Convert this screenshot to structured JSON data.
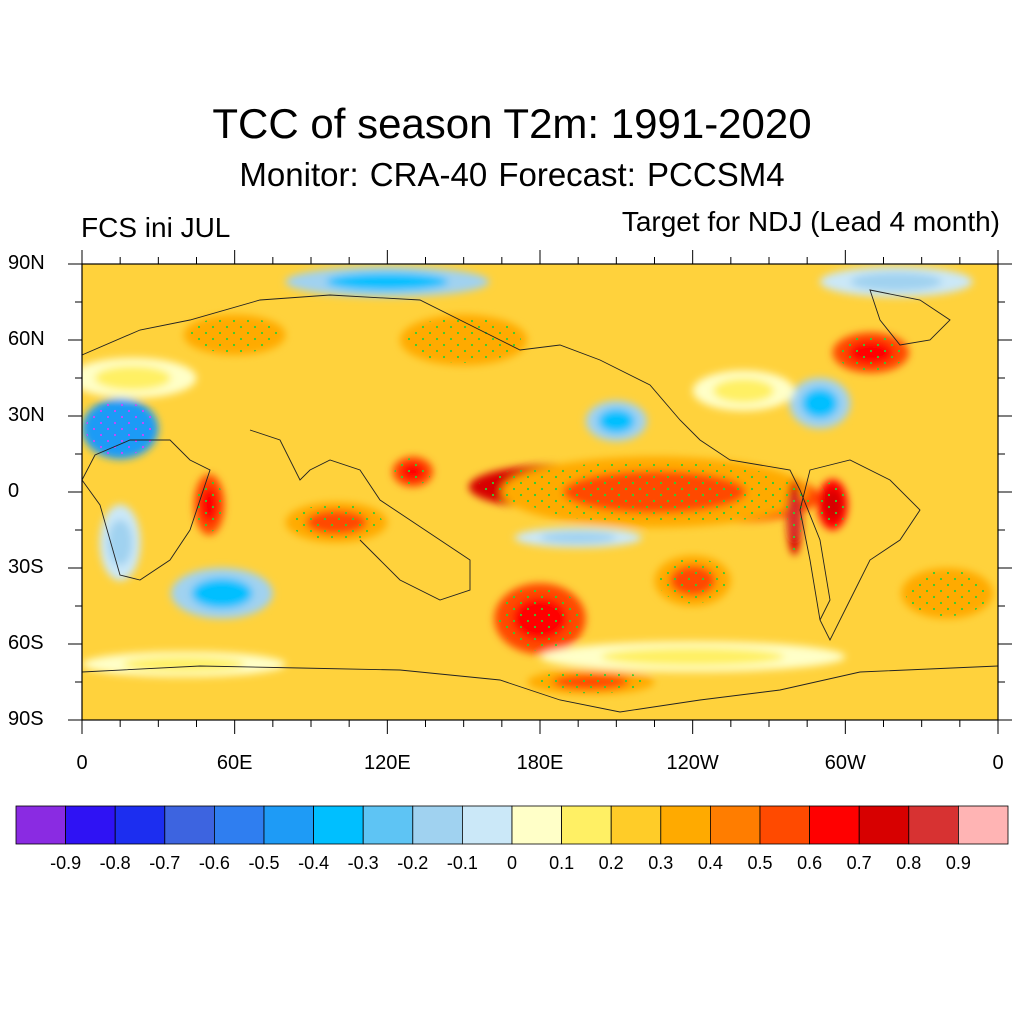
{
  "title": "TCC of season T2m: 1991-2020",
  "subtitle": "Monitor: CRA-40   Forecast: PCCSM4",
  "left_label": "FCS ini JUL",
  "right_label": "Target for NDJ (Lead 4 month)",
  "y_ticks": [
    "90N",
    "60N",
    "30N",
    "0",
    "30S",
    "60S",
    "90S"
  ],
  "x_ticks": [
    "0",
    "60E",
    "120E",
    "180E",
    "120W",
    "60W",
    "0"
  ],
  "colorbar": {
    "labels": [
      "-0.9",
      "-0.8",
      "-0.7",
      "-0.6",
      "-0.5",
      "-0.4",
      "-0.3",
      "-0.2",
      "-0.1",
      "0",
      "0.1",
      "0.2",
      "0.3",
      "0.4",
      "0.5",
      "0.6",
      "0.7",
      "0.8",
      "0.9"
    ],
    "colors": [
      "#8a2be2",
      "#2f12f4",
      "#1c2ef0",
      "#3d64e0",
      "#2f7ef0",
      "#1e9bf6",
      "#00bfff",
      "#5ec4f4",
      "#a0d2f0",
      "#cbe8f8",
      "#ffffc8",
      "#fff064",
      "#ffcc28",
      "#ffaa00",
      "#ff7d00",
      "#ff4a00",
      "#ff0000",
      "#d70000",
      "#d73232",
      "#ffb4b4"
    ]
  },
  "map": {
    "background_color": "#ffd23c",
    "blobs": [
      {
        "lon": 190,
        "lat": 2,
        "rx": 38,
        "ry": 9,
        "level": 0.8
      },
      {
        "lon": 255,
        "lat": -2,
        "rx": 35,
        "ry": 10,
        "level": 0.6
      },
      {
        "lon": 225,
        "lat": 0,
        "rx": 60,
        "ry": 14,
        "level": 0.5
      },
      {
        "lon": 130,
        "lat": 8,
        "rx": 8,
        "ry": 6,
        "level": 0.6
      },
      {
        "lon": 50,
        "lat": -5,
        "rx": 6,
        "ry": 12,
        "level": 0.6
      },
      {
        "lon": 100,
        "lat": -12,
        "rx": 20,
        "ry": 8,
        "level": 0.5
      },
      {
        "lon": 180,
        "lat": -50,
        "rx": 18,
        "ry": 14,
        "level": 0.6
      },
      {
        "lon": 310,
        "lat": 55,
        "rx": 15,
        "ry": 8,
        "level": 0.6
      },
      {
        "lon": 240,
        "lat": -35,
        "rx": 15,
        "ry": 10,
        "level": 0.5
      },
      {
        "lon": 200,
        "lat": -75,
        "rx": 25,
        "ry": 5,
        "level": 0.5
      },
      {
        "lon": 295,
        "lat": -5,
        "rx": 6,
        "ry": 10,
        "level": 0.7
      },
      {
        "lon": 280,
        "lat": -10,
        "rx": 3,
        "ry": 15,
        "level": 0.8
      },
      {
        "lon": 15,
        "lat": 25,
        "rx": 15,
        "ry": 12,
        "level": -0.5
      },
      {
        "lon": 210,
        "lat": 28,
        "rx": 12,
        "ry": 8,
        "level": -0.3
      },
      {
        "lon": 195,
        "lat": -18,
        "rx": 25,
        "ry": 4,
        "level": -0.2
      },
      {
        "lon": 55,
        "lat": -40,
        "rx": 20,
        "ry": 10,
        "level": -0.3
      },
      {
        "lon": 15,
        "lat": -20,
        "rx": 8,
        "ry": 15,
        "level": -0.2
      },
      {
        "lon": 290,
        "lat": 35,
        "rx": 12,
        "ry": 10,
        "level": -0.3
      },
      {
        "lon": 120,
        "lat": 83,
        "rx": 40,
        "ry": 6,
        "level": -0.3
      },
      {
        "lon": 320,
        "lat": 83,
        "rx": 30,
        "ry": 6,
        "level": -0.2
      },
      {
        "lon": 20,
        "lat": 45,
        "rx": 25,
        "ry": 8,
        "level": 0.1
      },
      {
        "lon": 240,
        "lat": -65,
        "rx": 60,
        "ry": 6,
        "level": 0.1
      },
      {
        "lon": 40,
        "lat": -68,
        "rx": 40,
        "ry": 5,
        "level": 0.1
      },
      {
        "lon": 150,
        "lat": 60,
        "rx": 25,
        "ry": 10,
        "level": 0.4
      },
      {
        "lon": 60,
        "lat": 62,
        "rx": 20,
        "ry": 8,
        "level": 0.4
      },
      {
        "lon": 260,
        "lat": 40,
        "rx": 20,
        "ry": 8,
        "level": 0.1
      },
      {
        "lon": 340,
        "lat": -40,
        "rx": 18,
        "ry": 10,
        "level": 0.4
      }
    ]
  }
}
